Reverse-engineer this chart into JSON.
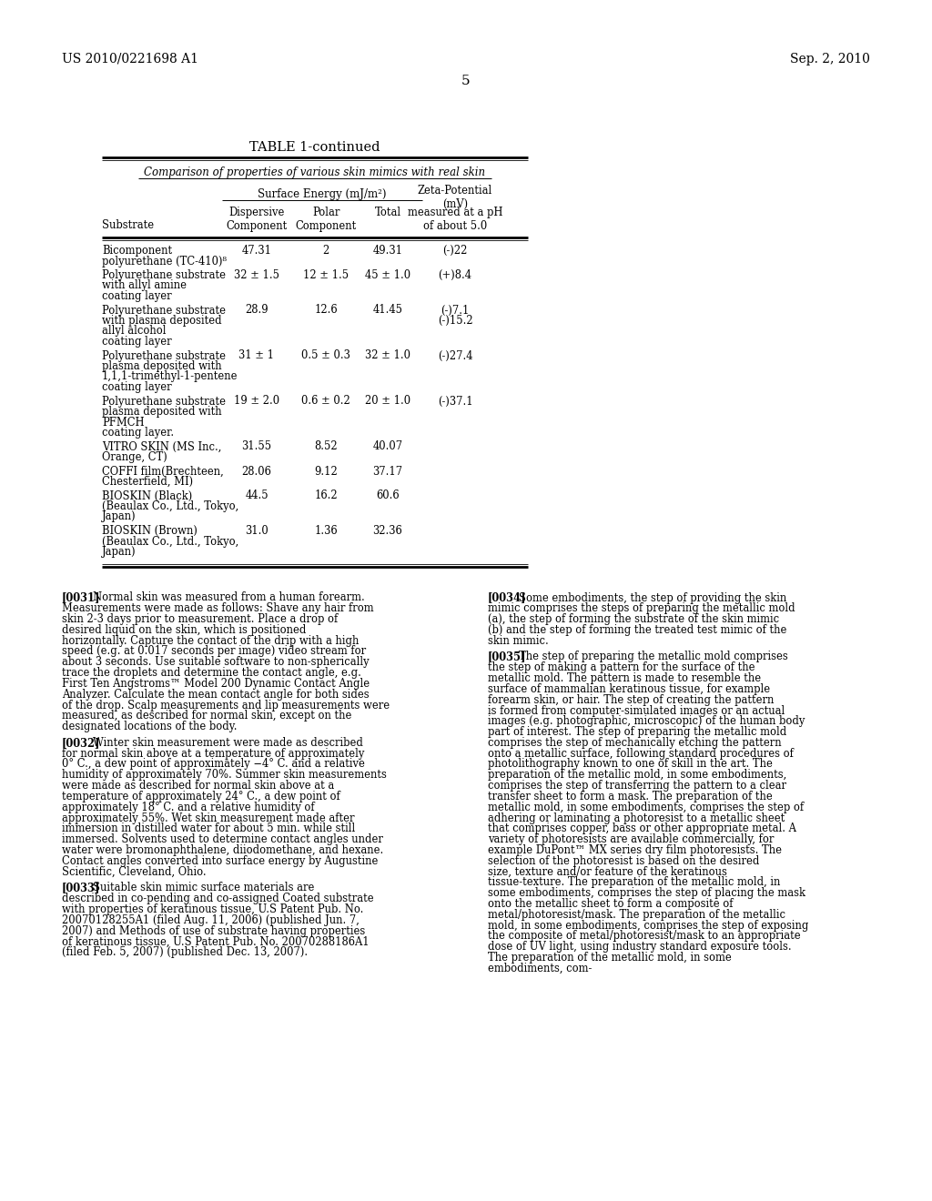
{
  "page_number": "5",
  "patent_left": "US 2010/0221698 A1",
  "patent_right": "Sep. 2, 2010",
  "table_title": "TABLE 1-continued",
  "table_subtitle": "Comparison of properties of various skin mimics with real skin",
  "table_rows": [
    {
      "substrate_lines": [
        "Bicomponent",
        "polyurethane (TC-410)⁸"
      ],
      "dispersive": "47.31",
      "polar": "2",
      "total": "49.31",
      "zeta_lines": [
        "(-)22"
      ]
    },
    {
      "substrate_lines": [
        "Polyurethane substrate",
        "with allyl amine",
        "coating layer"
      ],
      "dispersive": "32 ± 1.5",
      "polar": "12 ± 1.5",
      "total": "45 ± 1.0",
      "zeta_lines": [
        "(+)8.4"
      ]
    },
    {
      "substrate_lines": [
        "Polyurethane substrate",
        "with plasma deposited",
        "allyl alcohol",
        "coating layer"
      ],
      "dispersive": "28.9",
      "polar": "12.6",
      "total": "41.45",
      "zeta_lines": [
        "(-)7.1",
        "(-)15.2"
      ]
    },
    {
      "substrate_lines": [
        "Polyurethane substrate",
        "plasma deposited with",
        "1,1,1-trimethyl-1-pentene",
        "coating layer"
      ],
      "dispersive": "31 ± 1",
      "polar": "0.5 ± 0.3",
      "total": "32 ± 1.0",
      "zeta_lines": [
        "(-)27.4"
      ]
    },
    {
      "substrate_lines": [
        "Polyurethane substrate",
        "plasma deposited with",
        "PFMCH",
        "coating layer."
      ],
      "dispersive": "19 ± 2.0",
      "polar": "0.6 ± 0.2",
      "total": "20 ± 1.0",
      "zeta_lines": [
        "(-)37.1"
      ]
    },
    {
      "substrate_lines": [
        "VITRO SKIN (MS Inc.,",
        "Orange, CT)"
      ],
      "dispersive": "31.55",
      "polar": "8.52",
      "total": "40.07",
      "zeta_lines": []
    },
    {
      "substrate_lines": [
        "COFFI film(Brechteen,",
        "Chesterfield, MI)"
      ],
      "dispersive": "28.06",
      "polar": "9.12",
      "total": "37.17",
      "zeta_lines": []
    },
    {
      "substrate_lines": [
        "BIOSKIN (Black)",
        "(Beaulax Co., Ltd., Tokyo,",
        "Japan)"
      ],
      "dispersive": "44.5",
      "polar": "16.2",
      "total": "60.6",
      "zeta_lines": []
    },
    {
      "substrate_lines": [
        "BIOSKIN (Brown)",
        "(Beaulax Co., Ltd., Tokyo,",
        "Japan)"
      ],
      "dispersive": "31.0",
      "polar": "1.36",
      "total": "32.36",
      "zeta_lines": []
    }
  ],
  "paragraphs_col1": [
    {
      "number": "[0031]",
      "text": "Normal skin was measured from a human forearm. Measurements were made as follows: Shave any hair from skin 2-3 days prior to measurement. Place a drop of desired liquid on the skin, which is positioned horizontally. Capture the contact of the drip with a high speed (e.g. at 0.017 seconds per image) video stream for about 3 seconds. Use suitable software to non-spherically trace the droplets and determine the contact angle, e.g. First Ten Angstroms™ Model 200 Dynamic Contact Angle Analyzer. Calculate the mean contact angle for both sides of the drop. Scalp measurements and lip measurements were measured, as described for normal skin, except on the designated locations of the body."
    },
    {
      "number": "[0032]",
      "text": "Winter skin measurement were made as described for normal skin above at a temperature of approximately 0° C., a dew point of approximately −4° C. and a relative humidity of approximately 70%. Summer skin measurements were made as described for normal skin above at a temperature of approximately 24° C., a dew point of approximately 18° C. and a relative humidity of approximately 55%. Wet skin measurement made after immersion in distilled water for about 5 min. while still immersed. Solvents used to determine contact angles under water were bromonaphthalene, diiodomethane, and hexane. Contact angles converted into surface energy by Augustine Scientific, Cleveland, Ohio."
    },
    {
      "number": "[0033]",
      "text": "Suitable skin mimic surface materials are described in co-pending and co-assigned Coated substrate with properties of keratinous tissue, U.S Patent Pub. No. 20070128255A1 (filed Aug. 11, 2006) (published Jun. 7, 2007) and Methods of use of substrate having properties of keratinous tissue, U.S Patent Pub. No. 20070288186A1 (filed Feb. 5, 2007) (published Dec. 13, 2007)."
    }
  ],
  "paragraphs_col2": [
    {
      "number": "[0034]",
      "text": "Some embodiments, the step of providing the skin mimic comprises the steps of preparing the metallic mold (a), the step of forming the substrate of the skin mimic (b) and the step of forming the treated test mimic of the skin mimic."
    },
    {
      "number": "[0035]",
      "text": "The step of preparing the metallic mold comprises the step of making a pattern for the surface of the metallic mold. The pattern is made to resemble the surface of mammalian keratinous tissue, for example forearm skin, or hair. The step of creating the pattern is formed from computer-simulated images or an actual images (e.g. photographic, microscopic) of the human body part of interest. The step of preparing the metallic mold comprises the step of mechanically etching the pattern onto a metallic surface, following standard procedures of photolithography known to one of skill in the art. The preparation of the metallic mold, in some embodiments, comprises the step of transferring the pattern to a clear transfer sheet to form a mask. The preparation of the metallic mold, in some embodiments, comprises the step of adhering or laminating a photoresist to a metallic sheet that comprises copper, bass or other appropriate metal. A variety of photoresists are available commercially, for example DuPont™ MX series dry film photoresists. The selection of the photoresist is based on the desired size, texture and/or feature of the keratinous tissue-texture. The preparation of the metallic mold, in some embodiments, comprises the step of placing the mask onto the metallic sheet to form a composite of metal/photoresist/mask. The preparation of the metallic mold, in some embodiments, comprises the step of exposing the composite of metal/photoresist/mask to an appropriate dose of UV light, using industry standard exposure tools. The preparation of the metallic mold, in some embodiments, com-"
    }
  ]
}
